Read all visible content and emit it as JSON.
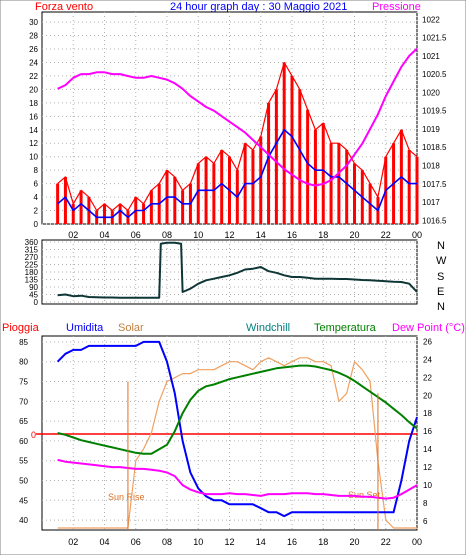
{
  "header": {
    "left_label": "Forza vento",
    "title": "24 hour graph day : 30 Maggio 2021",
    "right_label": "Pressione"
  },
  "colors": {
    "frame": "#000000",
    "grid": "#b0b0b0",
    "wind_gust": "#ff0000",
    "wind_avg": "#0000ff",
    "pressure": "#ff00ff",
    "direction": "#0f3636",
    "rain": "#ff0000",
    "humidity": "#0000ff",
    "solar": "#f0a060",
    "windchill": "#008080",
    "temperature": "#008000",
    "dewpoint": "#ff00ff",
    "annotation_sun": "#e07020"
  },
  "legend_row": {
    "rain": "Pioggia",
    "humidity": "Umidita",
    "solar": "Solar",
    "windchill": "Windchill",
    "temperature": "Temperatura",
    "dewpoint": "Dew Point (°C)"
  },
  "direction_letters": [
    "N",
    "W",
    "S",
    "E",
    "N"
  ],
  "annotations": {
    "sunrise": "Sun Rise",
    "sunset": "Sun Set"
  },
  "rain_axis_label": "0",
  "chart_data": [
    {
      "type": "line",
      "title": "24 hour graph day : 30 Maggio 2021",
      "x_hours": [
        1,
        1.5,
        2,
        2.5,
        3,
        3.5,
        4,
        4.5,
        5,
        5.5,
        6,
        6.5,
        7,
        7.5,
        8,
        8.5,
        9,
        9.5,
        10,
        10.5,
        11,
        11.5,
        12,
        12.5,
        13,
        13.5,
        14,
        14.5,
        15,
        15.5,
        16,
        16.5,
        17,
        17.5,
        18,
        18.5,
        19,
        19.5,
        20,
        20.5,
        21,
        21.5,
        22,
        22.5,
        23,
        23.5,
        24
      ],
      "x_ticks": [
        "02",
        "04",
        "06",
        "08",
        "10",
        "12",
        "14",
        "16",
        "18",
        "20",
        "22",
        "00"
      ],
      "y_left_ticks": [
        0,
        2,
        4,
        6,
        8,
        10,
        12,
        14,
        16,
        18,
        20,
        22,
        24,
        26,
        28,
        30
      ],
      "y_left_range": [
        0,
        31.5
      ],
      "y_right_ticks": [
        1016.5,
        1017,
        1017.5,
        1018,
        1018.5,
        1019,
        1019.5,
        1020,
        1020.5,
        1021,
        1021.5,
        1022
      ],
      "y_right_range": [
        1016.4,
        1022.2
      ],
      "series": [
        {
          "name": "Forza vento",
          "axis": "left",
          "values": [
            6,
            7,
            3,
            5,
            4,
            2,
            3,
            2,
            3,
            2,
            4,
            3,
            5,
            6,
            8,
            7,
            5,
            6,
            9,
            10,
            9,
            11,
            10,
            8,
            12,
            11,
            13,
            18,
            20,
            24,
            22,
            20,
            17,
            14,
            15,
            12,
            12,
            11,
            9,
            8,
            6,
            4,
            10,
            12,
            14,
            11,
            10
          ]
        },
        {
          "name": "",
          "axis": "left",
          "values": [
            3,
            4,
            2,
            3,
            2,
            1,
            1,
            1,
            2,
            1,
            2,
            2,
            3,
            3,
            4,
            4,
            3,
            3,
            5,
            5,
            5,
            6,
            5,
            4,
            6,
            6,
            7,
            10,
            12,
            14,
            13,
            11,
            9,
            8,
            8,
            7,
            7,
            6,
            5,
            4,
            3,
            2,
            5,
            6,
            7,
            6,
            6
          ]
        },
        {
          "name": "Pressione",
          "axis": "right",
          "values": [
            1020.1,
            1020.2,
            1020.4,
            1020.5,
            1020.5,
            1020.55,
            1020.55,
            1020.5,
            1020.5,
            1020.45,
            1020.4,
            1020.4,
            1020.45,
            1020.4,
            1020.35,
            1020.25,
            1020.1,
            1019.9,
            1019.75,
            1019.6,
            1019.5,
            1019.35,
            1019.2,
            1019.05,
            1018.9,
            1018.7,
            1018.5,
            1018.3,
            1018.1,
            1017.9,
            1017.75,
            1017.6,
            1017.5,
            1017.45,
            1017.5,
            1017.6,
            1017.8,
            1018.0,
            1018.3,
            1018.6,
            1019.0,
            1019.4,
            1019.9,
            1020.3,
            1020.7,
            1021.0,
            1021.2
          ]
        }
      ]
    },
    {
      "type": "line",
      "y_ticks": [
        0,
        45,
        90,
        135,
        180,
        225,
        270,
        315,
        360
      ],
      "y_tick_labels": [
        "0",
        "45",
        "90",
        "135",
        "180",
        "225",
        "270",
        "315",
        "360"
      ],
      "y_range": [
        0,
        360
      ],
      "x_hours": [
        1,
        1.5,
        2,
        2.5,
        3,
        3.5,
        4,
        4.5,
        5,
        5.5,
        6,
        6.5,
        7,
        7.5,
        7.6,
        8,
        8.5,
        8.9,
        9,
        9.5,
        10,
        10.5,
        11,
        11.5,
        12,
        12.5,
        13,
        13.5,
        14,
        14.5,
        15,
        15.5,
        16,
        16.5,
        17,
        17.5,
        18,
        18.5,
        19,
        19.5,
        20,
        20.5,
        21,
        21.5,
        22,
        22.5,
        23,
        23.5,
        24
      ],
      "series": [
        {
          "name": "",
          "values": [
            40,
            45,
            35,
            38,
            30,
            28,
            27,
            27,
            26,
            26,
            26,
            26,
            26,
            26,
            350,
            355,
            355,
            350,
            60,
            80,
            110,
            130,
            140,
            150,
            160,
            175,
            195,
            200,
            210,
            185,
            175,
            160,
            150,
            150,
            145,
            140,
            140,
            140,
            138,
            138,
            135,
            132,
            130,
            128,
            125,
            122,
            120,
            110,
            60
          ]
        }
      ]
    },
    {
      "type": "line",
      "x_hours": [
        1,
        1.5,
        2,
        2.5,
        3,
        3.5,
        4,
        4.5,
        5,
        5.5,
        6,
        6.5,
        7,
        7.5,
        8,
        8.5,
        9,
        9.5,
        10,
        10.5,
        11,
        11.5,
        12,
        12.5,
        13,
        13.5,
        14,
        14.5,
        15,
        15.5,
        16,
        16.5,
        17,
        17.5,
        18,
        18.5,
        19,
        19.5,
        20,
        20.5,
        21,
        21.5,
        22,
        22.5,
        23,
        23.5,
        24
      ],
      "x_ticks": [
        "02",
        "04",
        "06",
        "08",
        "10",
        "12",
        "14",
        "16",
        "18",
        "20",
        "22",
        "00"
      ],
      "y_left_ticks": [
        40,
        45,
        50,
        55,
        60,
        65,
        70,
        75,
        80,
        85
      ],
      "y_left_range": [
        37.5,
        86.5
      ],
      "y_right_ticks": [
        6,
        8,
        10,
        12,
        14,
        16,
        18,
        20,
        22,
        24,
        26
      ],
      "y_right_range": [
        5,
        26.6
      ],
      "series": [
        {
          "name": "Umidita",
          "axis": "left",
          "values": [
            80,
            82,
            83,
            83,
            84,
            84,
            84,
            84,
            84,
            84,
            84,
            85,
            85,
            85,
            80,
            72,
            60,
            52,
            48,
            46,
            45,
            45,
            44,
            44,
            44,
            44,
            43,
            42,
            42,
            41,
            42,
            42,
            42,
            42,
            42,
            42,
            42,
            42,
            42,
            42,
            42,
            42,
            42,
            42,
            50,
            60,
            66
          ]
        },
        {
          "name": "Temperatura",
          "axis": "right",
          "values": [
            15.8,
            15.6,
            15.3,
            15.0,
            14.8,
            14.6,
            14.4,
            14.2,
            14.0,
            13.8,
            13.6,
            13.5,
            13.5,
            14,
            14.5,
            16,
            18,
            19.5,
            20.5,
            21,
            21.2,
            21.5,
            21.8,
            22,
            22.2,
            22.4,
            22.6,
            22.8,
            23,
            23.1,
            23.2,
            23.3,
            23.3,
            23.2,
            23,
            22.8,
            22.5,
            22.1,
            21.6,
            21,
            20.4,
            19.8,
            19.2,
            18.5,
            17.8,
            17,
            16.3
          ]
        },
        {
          "name": "Dew Point",
          "axis": "right",
          "values": [
            12.8,
            12.6,
            12.5,
            12.4,
            12.3,
            12.2,
            12.1,
            12.0,
            12.0,
            11.9,
            11.8,
            11.8,
            11.7,
            11.6,
            11.4,
            11,
            10,
            9.5,
            9.2,
            9.0,
            9.0,
            9.0,
            9.1,
            9.0,
            9.0,
            8.9,
            8.8,
            9.0,
            9.0,
            9.0,
            9.1,
            9.1,
            9.1,
            9.0,
            9.0,
            8.9,
            8.8,
            8.8,
            8.8,
            8.7,
            8.7,
            8.6,
            8.5,
            8.6,
            9.0,
            9.5,
            10.0
          ]
        },
        {
          "name": "Solar",
          "axis": "left",
          "values": [
            38,
            38,
            38,
            38,
            38,
            38,
            38,
            38,
            38,
            38,
            55,
            58,
            62,
            70,
            75,
            76,
            77,
            77,
            78,
            78,
            78,
            79,
            80,
            80,
            79,
            78,
            80,
            81,
            80,
            79,
            80,
            81,
            81,
            80,
            80,
            79,
            70,
            72,
            80,
            78,
            75,
            55,
            40,
            38,
            38,
            38,
            38
          ]
        }
      ],
      "annotations": [
        "Sun Rise",
        "Sun Set"
      ]
    }
  ]
}
